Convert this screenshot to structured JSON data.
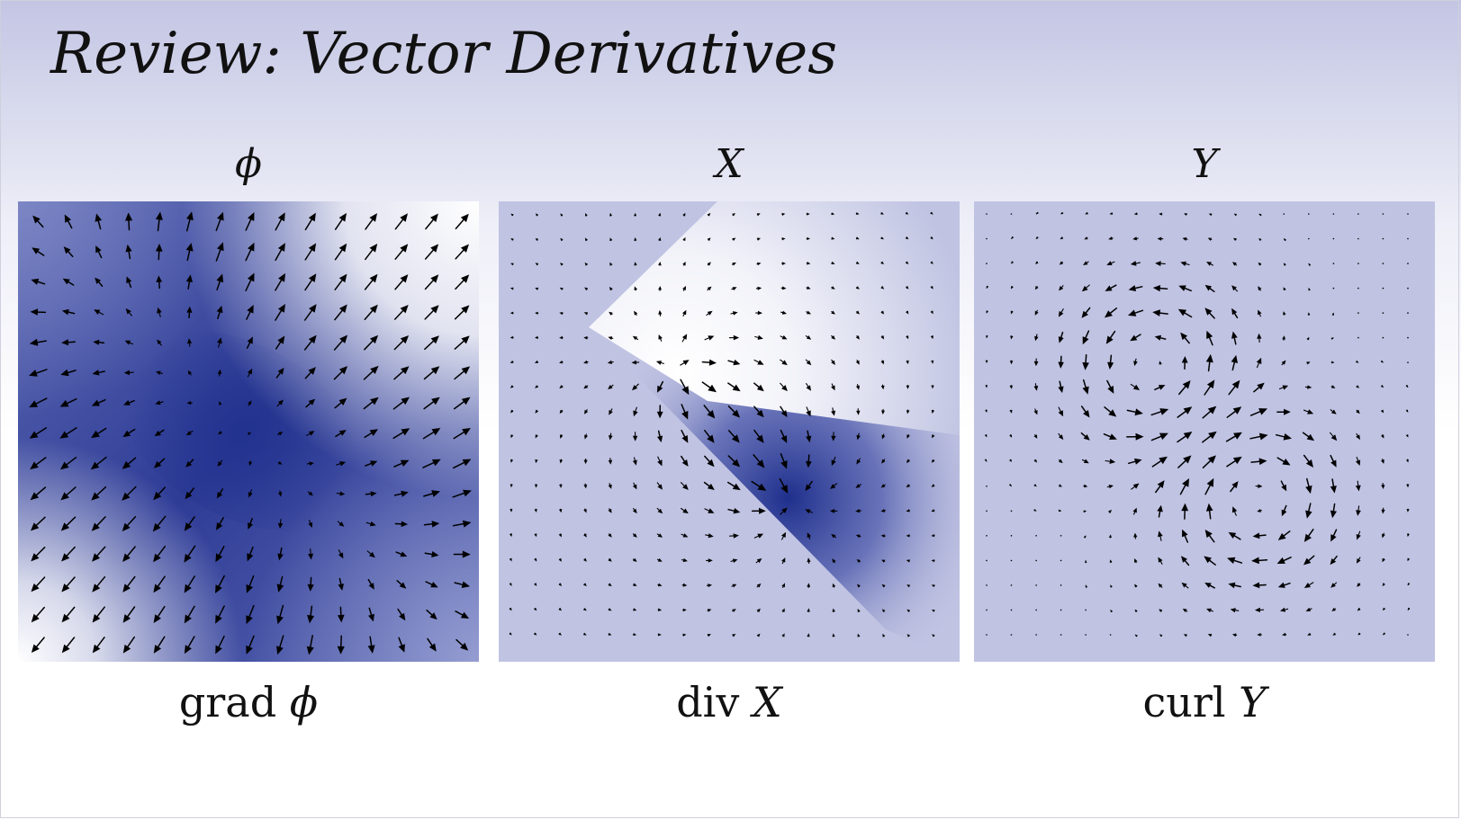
{
  "slide": {
    "title": "Review: Vector Derivatives"
  },
  "panels": [
    {
      "id": "phi",
      "top_label": "ϕ",
      "bottom_operator": "grad",
      "bottom_variable": "ϕ",
      "field_type": "gradient"
    },
    {
      "id": "x",
      "top_label": "X",
      "bottom_operator": "div",
      "bottom_variable": "X",
      "field_type": "source-sink"
    },
    {
      "id": "y",
      "top_label": "Y",
      "bottom_operator": "curl",
      "bottom_variable": "Y",
      "field_type": "double-vortex"
    }
  ],
  "colors": {
    "dark_blue": "#1e2f8c",
    "panel_base": "#c0c3e2",
    "white": "#ffffff",
    "arrow": "#000000"
  }
}
